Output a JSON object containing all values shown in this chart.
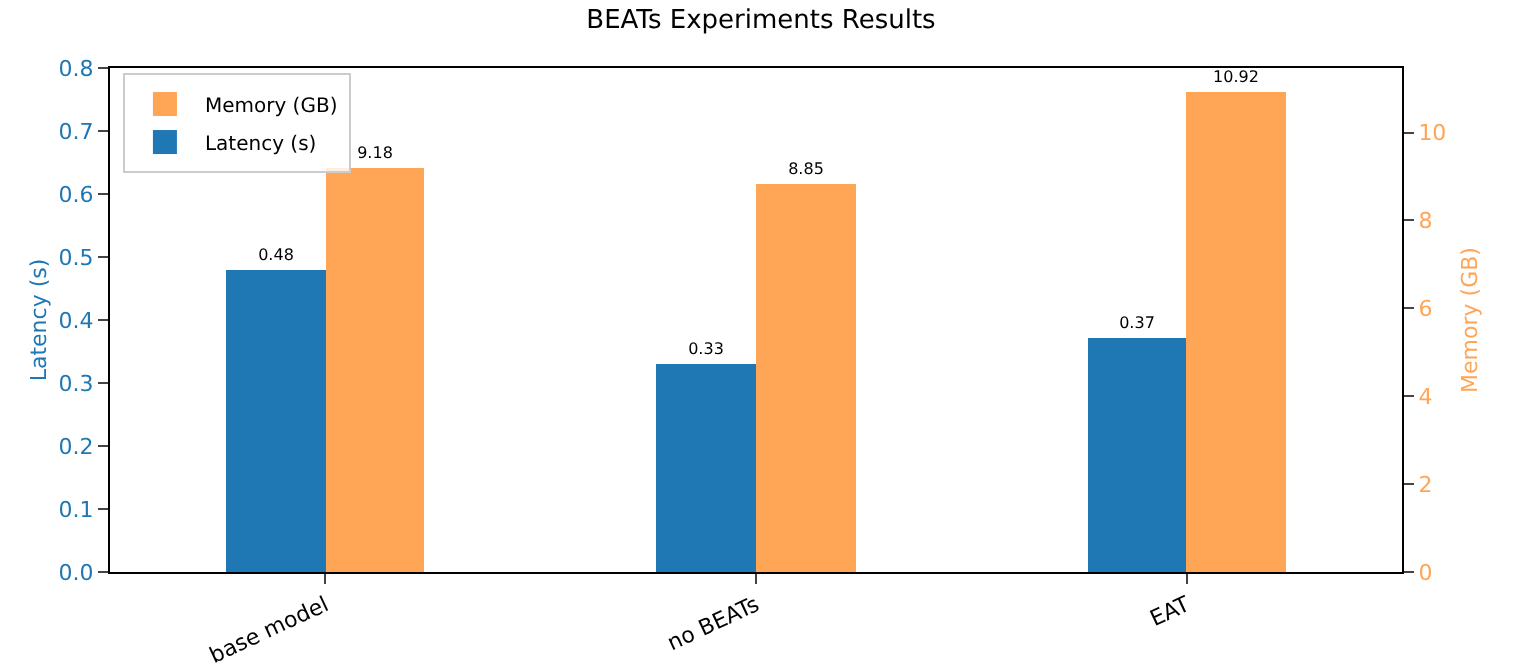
{
  "chart_data": {
    "type": "bar",
    "title": "BEATs Experiments Results",
    "categories": [
      "base model",
      "no BEATs",
      "EAT"
    ],
    "ylabel": "Latency (s)",
    "y2label": "Memory (GB)",
    "series": [
      {
        "name": "Latency (s)",
        "color": "#1f77b4",
        "values": [
          0.48,
          0.33,
          0.37
        ]
      },
      {
        "name": "Memory (GB)",
        "color": "#ffa556",
        "values": [
          9.18,
          8.85,
          10.92
        ],
        "axis": "y2"
      }
    ],
    "ylim": [
      0,
      0.8
    ],
    "yticks": [
      {
        "value": 0,
        "label": "0.0"
      },
      0.1,
      0.2,
      0.3,
      0.4,
      0.5,
      0.6,
      0.7,
      0.8
    ],
    "y2lim": [
      0,
      11.47
    ],
    "y2ticks": [
      0,
      2,
      4,
      6,
      8,
      10
    ],
    "data_labels": true,
    "legend": "top left",
    "grid": false
  }
}
